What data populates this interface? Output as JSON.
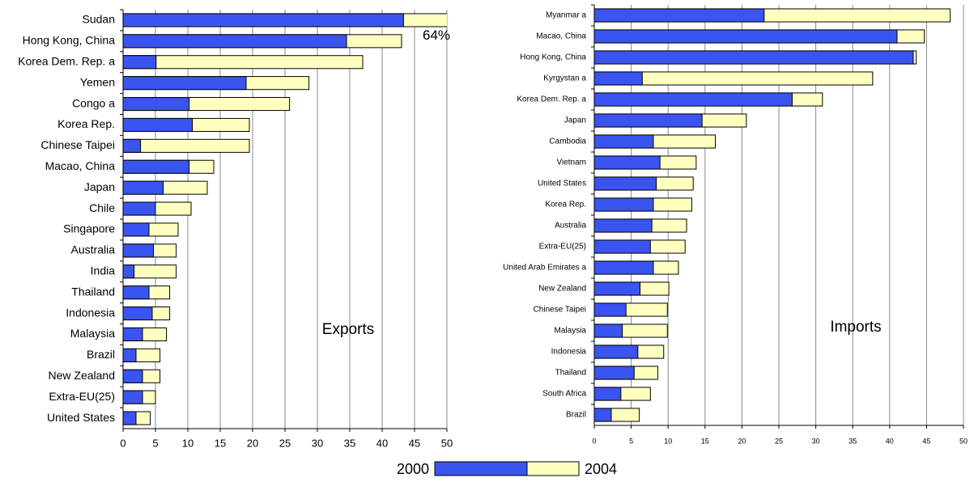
{
  "chart_data": [
    {
      "type": "bar",
      "orientation": "horizontal",
      "label": "Exports",
      "categories": [
        "Sudan",
        "Hong Kong, China",
        "Korea Dem. Rep. a",
        "Yemen",
        "Congo a",
        "Korea Rep.",
        "Chinese Taipei",
        "Macao, China",
        "Japan",
        "Chile",
        "Singapore",
        "Australia",
        "India",
        "Thailand",
        "Indonesia",
        "Malaysia",
        "Brazil",
        "New Zealand",
        "Extra-EU(25)",
        "United States"
      ],
      "series": [
        {
          "name": "2000",
          "color": "#3a54f0",
          "values": [
            43.3,
            34.5,
            5.1,
            19,
            10.2,
            10.7,
            2.7,
            10.2,
            6.2,
            5,
            4,
            4.7,
            1.7,
            4,
            4.5,
            3,
            2,
            3,
            3,
            2
          ]
        },
        {
          "name": "2004",
          "color": "#ffffc0",
          "values": [
            64,
            43,
            37,
            28.7,
            25.7,
            19.5,
            19.5,
            14,
            13,
            10.5,
            8.5,
            8.2,
            8.2,
            7.2,
            7.2,
            6.7,
            5.7,
            5.7,
            5,
            4.2
          ],
          "value_labels": [
            "64%",
            null,
            null,
            null,
            null,
            null,
            null,
            null,
            null,
            null,
            null,
            null,
            null,
            null,
            null,
            null,
            null,
            null,
            null,
            null
          ]
        }
      ],
      "xlim": [
        0,
        50
      ],
      "xticks": [
        0,
        5,
        10,
        15,
        20,
        25,
        30,
        35,
        40,
        45,
        50
      ],
      "grid": true
    },
    {
      "type": "bar",
      "orientation": "horizontal",
      "label": "Imports",
      "categories": [
        "Myanmar a",
        "Macao, China",
        "Hong Kong, China",
        "Kyrgystan a",
        "Korea Dem. Rep. a",
        "Japan",
        "Cambodia",
        "Vietnam",
        "United States",
        "Korea Rep.",
        "Australia",
        "Extra-EU(25)",
        "United Arab Emirates a",
        "New Zealand",
        "Chinese Taipei",
        "Malaysia",
        "Indonesia",
        "Thailand",
        "South Africa",
        "Brazil"
      ],
      "series": [
        {
          "name": "2000",
          "color": "#3a54f0",
          "values": [
            23,
            41,
            43.2,
            6.5,
            26.8,
            14.6,
            8,
            8.9,
            8.4,
            8,
            7.8,
            7.6,
            8,
            6.2,
            4.3,
            3.8,
            5.9,
            5.4,
            3.6,
            2.3
          ]
        },
        {
          "name": "2004",
          "color": "#ffffc0",
          "values": [
            48.2,
            44.7,
            43.6,
            37.7,
            30.9,
            20.6,
            16.4,
            13.8,
            13.4,
            13.2,
            12.5,
            12.3,
            11.4,
            10.1,
            9.9,
            9.9,
            9.4,
            8.6,
            7.6,
            6.1
          ]
        }
      ],
      "xlim": [
        0,
        50
      ],
      "xticks": [
        0,
        5,
        10,
        15,
        20,
        25,
        30,
        35,
        40,
        45,
        50
      ],
      "grid": true
    }
  ]
}
